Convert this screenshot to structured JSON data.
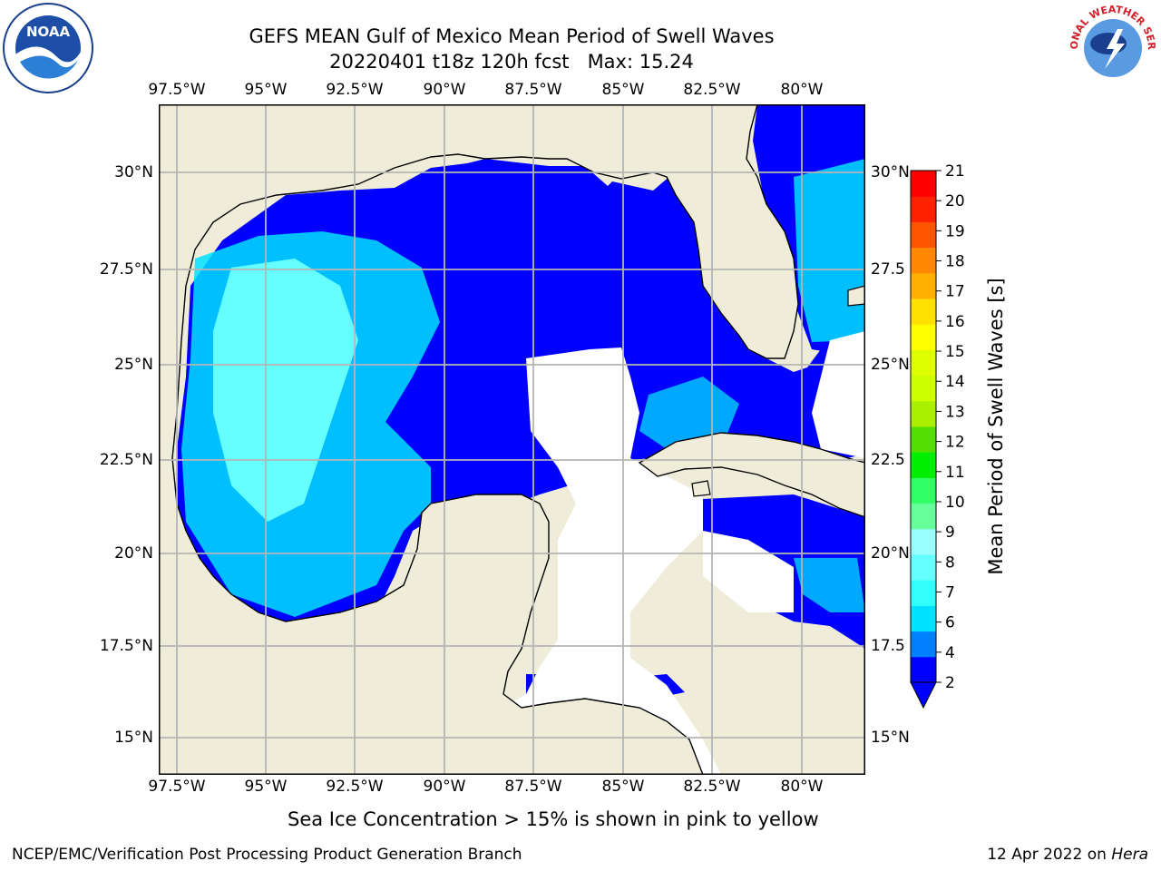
{
  "title": {
    "line1": "GEFS MEAN Gulf of Mexico Mean Period of Swell Waves",
    "line2": "20220401 t18z 120h fcst   Max: 15.24"
  },
  "axes": {
    "lon_labels": [
      "97.5°W",
      "95°W",
      "92.5°W",
      "90°W",
      "87.5°W",
      "85°W",
      "82.5°W",
      "80°W"
    ],
    "lat_labels_left": [
      "30°N",
      "27.5°N",
      "25°N",
      "22.5°N",
      "20°N",
      "17.5°N",
      "15°N"
    ],
    "lat_labels_right": [
      "30°N",
      "27.5",
      "25°N",
      "22.5",
      "20°N",
      "17.5",
      "15°N"
    ]
  },
  "colorbar": {
    "label": "Mean Period of Swell Waves [s]",
    "ticks": [
      "21",
      "20",
      "19",
      "18",
      "17",
      "16",
      "15",
      "14",
      "13",
      "12",
      "11",
      "10",
      "9",
      "8",
      "7",
      "6",
      "4",
      "2"
    ],
    "colors": [
      "#0000ff",
      "#0080ff",
      "#00e0ff",
      "#33ffff",
      "#66ffff",
      "#99ffff",
      "#66ff99",
      "#33ff66",
      "#00ee00",
      "#55dd00",
      "#aaee00",
      "#ccff00",
      "#ddff00",
      "#ffff00",
      "#ffe000",
      "#ffb000",
      "#ff8800",
      "#ff5500",
      "#ff2200",
      "#ff0000"
    ]
  },
  "colors": {
    "land": "#efedd9",
    "nodata": "#ffffff",
    "grid": "#b4b4b4"
  },
  "caption": "Sea Ice Concentration > 15% is shown in pink to yellow",
  "footer": {
    "left": "NCEP/EMC/Verification Post Processing Product Generation Branch",
    "date": "12 Apr 2022 on",
    "machine": "Hera"
  },
  "logos": {
    "noaa": "NOAA",
    "nws_text": "NATIONAL WEATHER SERVICE"
  }
}
